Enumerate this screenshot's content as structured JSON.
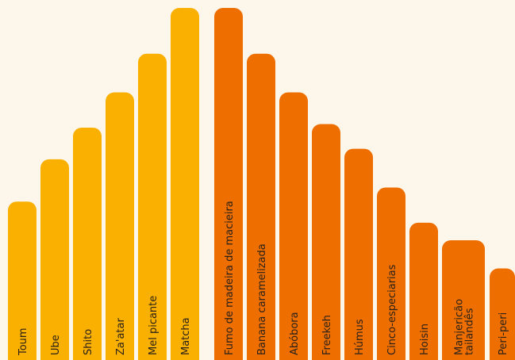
{
  "chart_data": {
    "type": "bar",
    "title": "",
    "xlabel": "",
    "ylabel": "",
    "ylim": [
      0,
      100
    ],
    "grid": false,
    "legend": "none",
    "colors": {
      "group_a": "#f9b000",
      "group_b": "#ee6f00",
      "background": "#fdf6ea",
      "label": "#2b2118"
    },
    "categories": [
      "Toum",
      "Ube",
      "Shito",
      "Za'atar",
      "Mel picante",
      "Matcha",
      "Fumo de madeira de macieira",
      "Banana caramelizada",
      "Abóbora",
      "Freekeh",
      "Húmus",
      "Cinco-especiarias",
      "Hoisin",
      "Manjericão tailandês",
      "Peri-peri"
    ],
    "values": [
      45,
      57,
      66,
      76,
      87,
      100,
      100,
      87,
      76,
      67,
      60,
      49,
      39,
      34,
      26
    ],
    "groups": [
      "a",
      "a",
      "a",
      "a",
      "a",
      "a",
      "b",
      "b",
      "b",
      "b",
      "b",
      "b",
      "b",
      "b",
      "b"
    ]
  }
}
